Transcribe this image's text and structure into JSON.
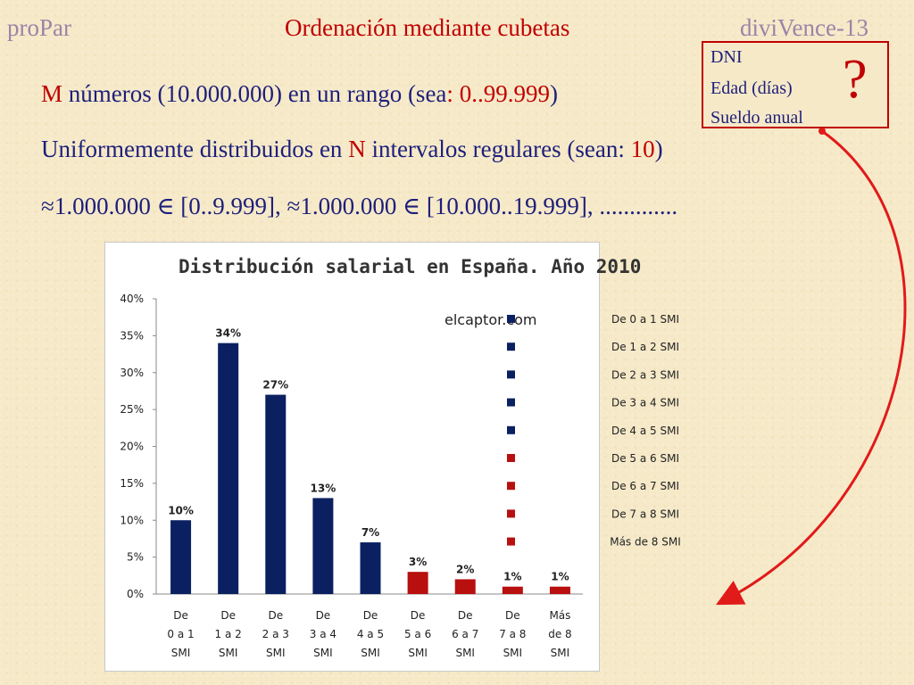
{
  "header": {
    "left": "proPar",
    "center": "Ordenación mediante cubetas",
    "right": "diviVence-13"
  },
  "lines": {
    "l1_prefix": "M",
    "l1_mid": " números (10.000.000) en un rango (sea",
    "l1_colon": ":",
    "l1_range": " 0..99.999",
    "l1_close": ")",
    "l2_start": "Uniformemente distribuidos en ",
    "l2_n": "N",
    "l2_mid": " intervalos regulares (sean: ",
    "l2_ten": "10",
    "l2_close": ")",
    "l3": "≈1.000.000 ∈ [0..9.999], ≈1.000.000 ∈ [10.000..19.999], ............."
  },
  "box": {
    "items": [
      "DNI",
      "Edad (días)",
      "Sueldo anual"
    ],
    "mark": "?"
  },
  "colors": {
    "accent_red": "#c00000",
    "text_navy": "#1d1f7a",
    "header_gray": "#9a84a8",
    "bar_navy": "#0b2060",
    "bar_red": "#b80f0f"
  },
  "chart_data": {
    "type": "bar",
    "title": "Distribución salarial en España. Año 2010",
    "annotation": "elcaptor.com",
    "categories": [
      [
        "De",
        "0 a 1",
        "SMI"
      ],
      [
        "De",
        "1 a 2",
        "SMI"
      ],
      [
        "De",
        "2 a 3",
        "SMI"
      ],
      [
        "De",
        "3 a 4",
        "SMI"
      ],
      [
        "De",
        "4 a 5",
        "SMI"
      ],
      [
        "De",
        "5 a 6",
        "SMI"
      ],
      [
        "De",
        "6 a 7",
        "SMI"
      ],
      [
        "De",
        "7 a 8",
        "SMI"
      ],
      [
        "Más",
        "de 8",
        "SMI"
      ]
    ],
    "values": [
      10,
      34,
      27,
      13,
      7,
      3,
      2,
      1,
      1
    ],
    "value_labels": [
      "10%",
      "34%",
      "27%",
      "13%",
      "7%",
      "3%",
      "2%",
      "1%",
      "1%"
    ],
    "bar_colors": [
      "#0b2060",
      "#0b2060",
      "#0b2060",
      "#0b2060",
      "#0b2060",
      "#b80f0f",
      "#b80f0f",
      "#b80f0f",
      "#b80f0f"
    ],
    "yticks": [
      "0%",
      "5%",
      "10%",
      "15%",
      "20%",
      "25%",
      "30%",
      "35%",
      "40%"
    ],
    "ylim": [
      0,
      40
    ],
    "legend": [
      "De 0 a 1 SMI",
      "De 1 a 2 SMI",
      "De 2 a 3 SMI",
      "De 3 a 4 SMI",
      "De 4 a 5 SMI",
      "De 5 a 6 SMI",
      "De 6 a 7 SMI",
      "De 7 a 8 SMI",
      "Más de 8 SMI"
    ],
    "legend_position": "right",
    "grid": false
  }
}
